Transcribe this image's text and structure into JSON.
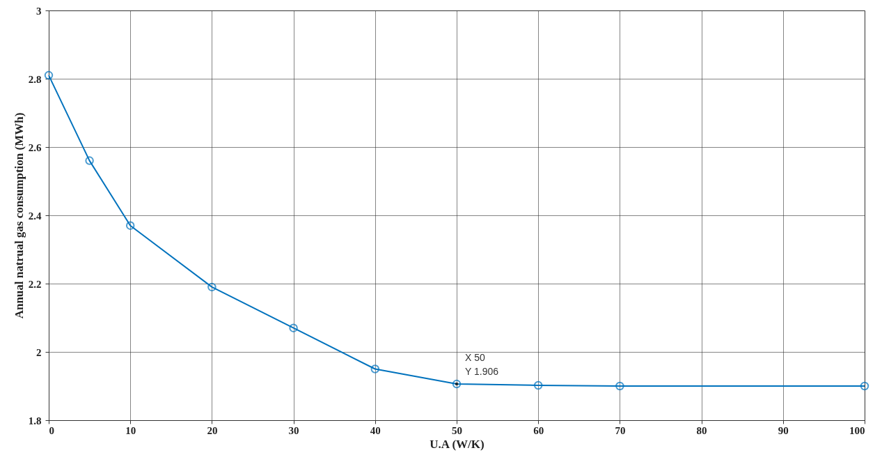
{
  "chart_data": {
    "type": "line",
    "xlabel": "U.A   (W/K)",
    "ylabel": "Annual natrual gas consumption (MWh)",
    "x": [
      0,
      5,
      10,
      20,
      30,
      40,
      50,
      60,
      70,
      100
    ],
    "series": [
      {
        "color": "#0072bd",
        "values": [
          2.81,
          2.56,
          2.37,
          2.19,
          2.07,
          1.95,
          1.906,
          1.902,
          1.9,
          1.9
        ]
      }
    ],
    "xlim": [
      0,
      100
    ],
    "xticks": [
      0,
      10,
      20,
      30,
      40,
      50,
      60,
      70,
      80,
      90,
      100
    ],
    "ylim": [
      1.8,
      3
    ],
    "yticks": [
      1.8,
      2,
      2.2,
      2.4,
      2.6,
      2.8,
      3
    ],
    "grid": true,
    "marker": "circle",
    "line_style": "solid",
    "annotations": [
      {
        "text": "X 50\nY 1.906",
        "x": 50,
        "y": 1.906
      }
    ]
  }
}
